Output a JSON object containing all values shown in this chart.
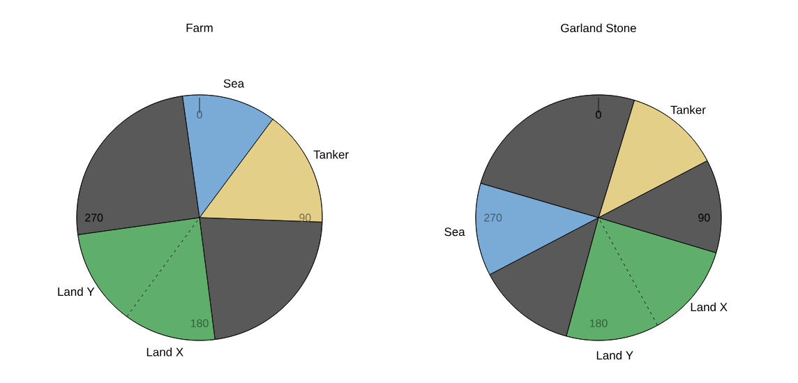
{
  "chart_data": [
    {
      "type": "pie",
      "title": "Farm",
      "categories": [
        "Sea",
        "Tanker",
        null,
        "Land X",
        "Land Y",
        null
      ],
      "values": [
        12.4,
        15.4,
        22.4,
        12.1,
        12.7,
        25.0
      ],
      "colors": [
        "#7aaad6",
        "#e3cf87",
        "#595959",
        "#5fae6b",
        "#5fae6b",
        "#595959"
      ],
      "annotations": [
        "0",
        "90",
        "180",
        "270"
      ]
    },
    {
      "type": "pie",
      "title": "Garland Stone",
      "categories": [
        "Tanker",
        null,
        "Land X",
        "Land Y",
        null,
        "Sea",
        null
      ],
      "values": [
        12.6,
        12.3,
        12.4,
        12.2,
        13.1,
        12.2,
        25.2
      ],
      "colors": [
        "#e3cf87",
        "#595959",
        "#5fae6b",
        "#5fae6b",
        "#595959",
        "#7aaad6",
        "#595959"
      ],
      "annotations": [
        "0",
        "90",
        "180",
        "270"
      ]
    }
  ]
}
